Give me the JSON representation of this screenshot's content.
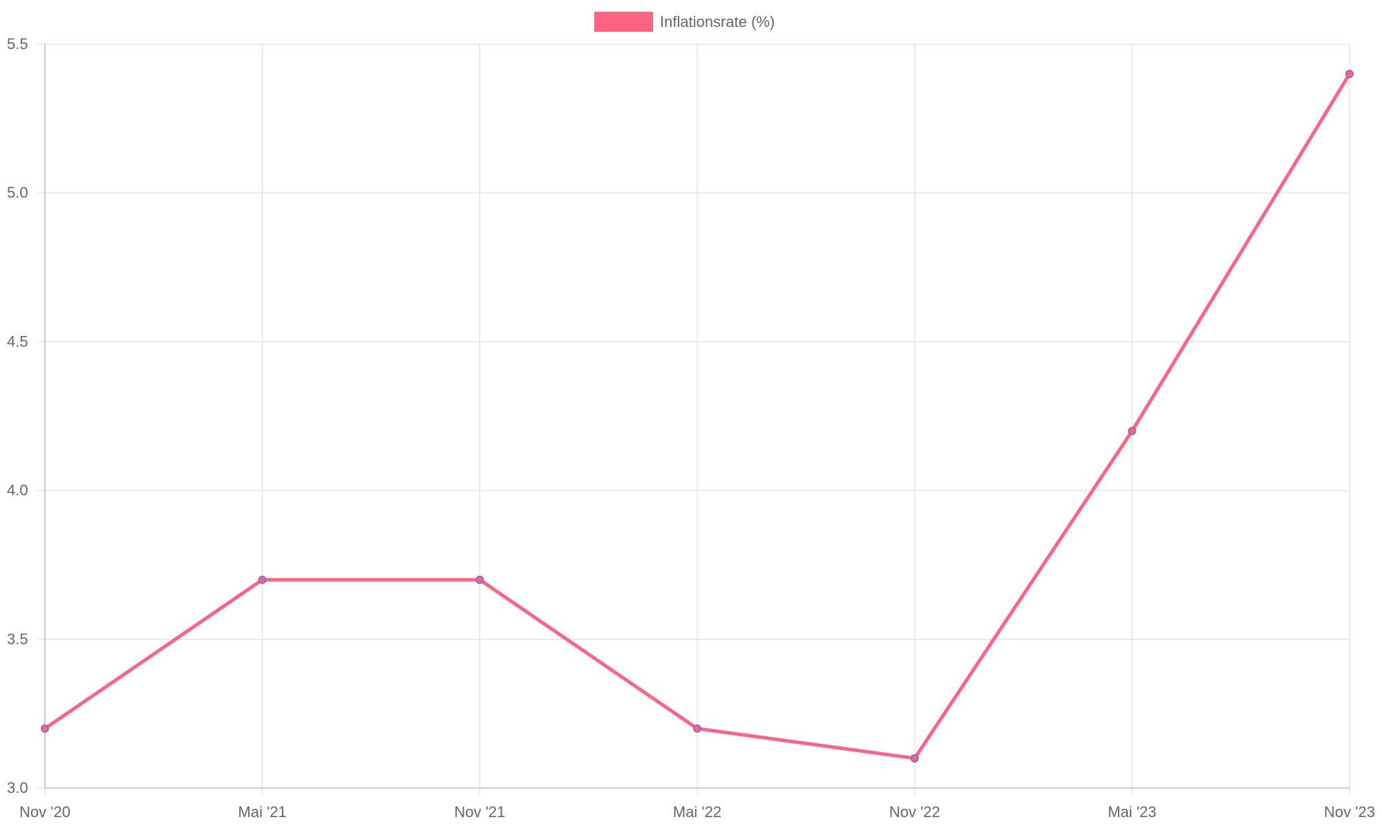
{
  "chart_data": {
    "type": "line",
    "title": "",
    "xlabel": "",
    "ylabel": "",
    "categories": [
      "Nov '20",
      "Mai '21",
      "Nov '21",
      "Mai '22",
      "Nov '22",
      "Mai '23",
      "Nov '23"
    ],
    "series": [
      {
        "name": "Inflationsrate (%)",
        "values": [
          3.2,
          3.7,
          3.7,
          3.2,
          3.1,
          4.2,
          5.4
        ],
        "color": "#ff6384"
      }
    ],
    "y_ticks": [
      "3.0",
      "3.5",
      "4.0",
      "4.5",
      "5.0",
      "5.5"
    ],
    "ylim": [
      3.0,
      5.5
    ],
    "grid": true,
    "legend_position": "top-center"
  },
  "colors": {
    "line": "#ff6384",
    "point_border": "#8a6bbf",
    "grid": "#e0e0e0",
    "axis": "#bdbdbd",
    "text": "#666666"
  }
}
